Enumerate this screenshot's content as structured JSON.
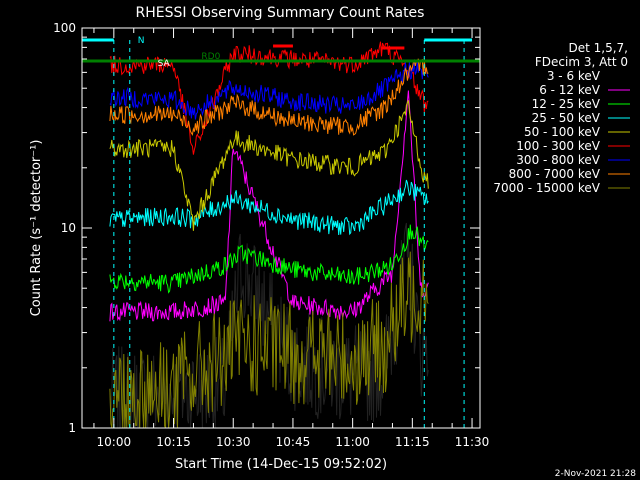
{
  "chart_data": {
    "type": "line",
    "title": "RHESSI Observing Summary Count Rates",
    "xlabel": "Start Time (14-Dec-15 09:52:02)",
    "ylabel": "Count Rate (s⁻¹ detector⁻¹)",
    "y_scale": "log",
    "ylim": [
      1,
      100
    ],
    "xlim": [
      "09:52",
      "11:32"
    ],
    "x_ticks": [
      "10:00",
      "10:15",
      "10:30",
      "10:45",
      "11:00",
      "11:15",
      "11:30"
    ],
    "y_ticks": [
      "1",
      "10",
      "100"
    ],
    "legend_title": [
      "Det 1,5,7,",
      "FDecim 3, Att 0"
    ],
    "legend_position": "top-right",
    "grid": false,
    "footer": "2-Nov-2021 21:28",
    "annotations": {
      "n": "N",
      "sa": "SA",
      "rd0": "RD0"
    },
    "flag_colors": {
      "night": "#00ffff",
      "saa": "#ff0000",
      "decim": "#008000"
    },
    "series": [
      {
        "name": "3 - 6 keV",
        "color": "#000000",
        "x": [
          "10:00",
          "10:15",
          "10:28",
          "10:32",
          "10:45",
          "11:00",
          "11:08",
          "11:14",
          "11:17"
        ],
        "values": [
          1.4,
          1.5,
          1.6,
          6.5,
          2.2,
          1.8,
          2.0,
          7.0,
          2.5
        ]
      },
      {
        "name": "6 - 12 keV",
        "color": "#ff00ff",
        "x": [
          "10:00",
          "10:15",
          "10:28",
          "10:30",
          "10:45",
          "11:00",
          "11:10",
          "11:14",
          "11:17"
        ],
        "values": [
          3.8,
          3.8,
          4.2,
          26,
          4.2,
          3.8,
          6.0,
          50,
          5.0
        ]
      },
      {
        "name": "12 - 25 keV",
        "color": "#00ff00",
        "x": [
          "10:00",
          "10:15",
          "10:28",
          "10:32",
          "10:45",
          "11:00",
          "11:10",
          "11:15",
          "11:18"
        ],
        "values": [
          5.5,
          5.3,
          6.5,
          7.5,
          6.2,
          5.6,
          6.5,
          10.0,
          8.0
        ]
      },
      {
        "name": "25 - 50 keV",
        "color": "#00ffff",
        "x": [
          "10:00",
          "10:15",
          "10:20",
          "10:30",
          "10:45",
          "11:00",
          "11:08",
          "11:14",
          "11:18"
        ],
        "values": [
          11.0,
          11.5,
          11.0,
          14.0,
          11.0,
          10.0,
          13.0,
          16.0,
          14.0
        ]
      },
      {
        "name": "50 - 100 keV",
        "color": "#c8c800",
        "x": [
          "10:00",
          "10:15",
          "10:20",
          "10:30",
          "10:45",
          "11:00",
          "11:08",
          "11:14",
          "11:18"
        ],
        "values": [
          25,
          25,
          10.5,
          28,
          22,
          20,
          24,
          40,
          17.5
        ]
      },
      {
        "name": "100 - 300 keV",
        "color": "#ff0000",
        "x": [
          "10:00",
          "10:15",
          "10:20",
          "10:30",
          "10:45",
          "11:00",
          "11:08",
          "11:14",
          "11:18"
        ],
        "values": [
          65,
          66,
          24,
          75,
          70,
          66,
          80,
          62,
          42
        ]
      },
      {
        "name": "300 - 800 keV",
        "color": "#0000ff",
        "x": [
          "10:00",
          "10:15",
          "10:20",
          "10:30",
          "10:45",
          "11:00",
          "11:08",
          "11:14",
          "11:18"
        ],
        "values": [
          45,
          44,
          38,
          50,
          43,
          40,
          50,
          62,
          60
        ]
      },
      {
        "name": "800 - 7000 keV",
        "color": "#ff8000",
        "x": [
          "10:00",
          "10:15",
          "10:20",
          "10:30",
          "10:45",
          "11:00",
          "11:08",
          "11:14",
          "11:18"
        ],
        "values": [
          37,
          37,
          32,
          42,
          34,
          32,
          40,
          60,
          65
        ]
      },
      {
        "name": "7000 - 15000 keV",
        "color": "#808000",
        "x": [
          "10:00",
          "10:15",
          "10:28",
          "10:32",
          "10:45",
          "11:00",
          "11:08",
          "11:14",
          "11:18"
        ],
        "values": [
          1.5,
          1.6,
          2.3,
          2.6,
          2.4,
          2.2,
          2.6,
          4.5,
          5.5
        ]
      }
    ]
  }
}
